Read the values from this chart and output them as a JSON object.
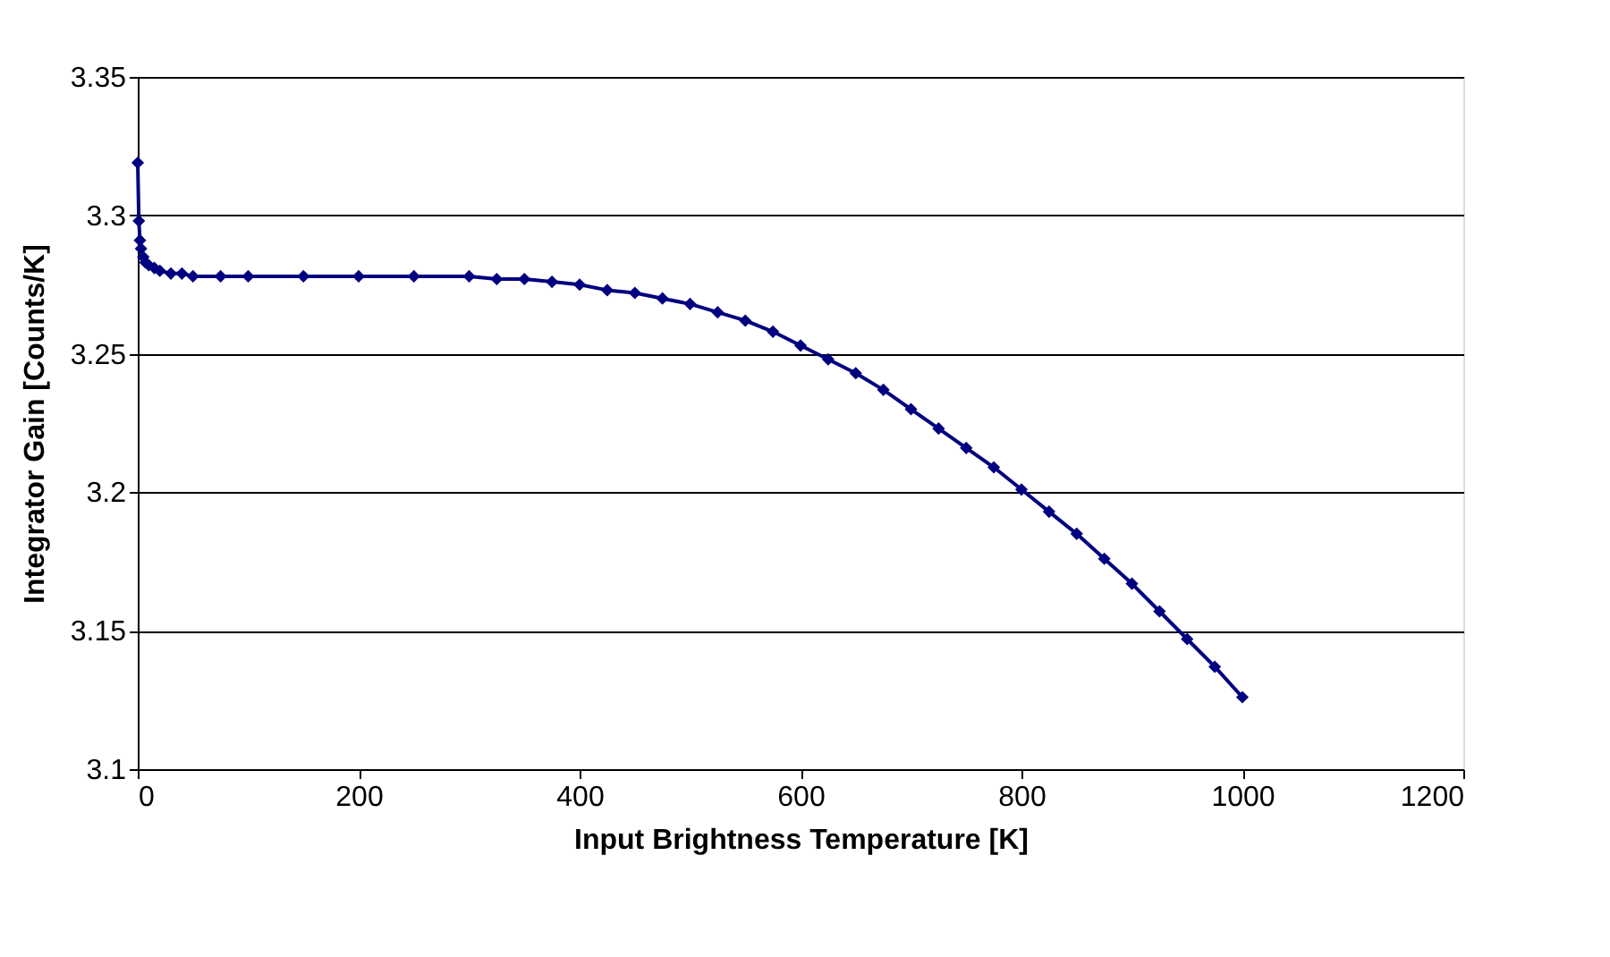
{
  "chart_data": {
    "type": "line",
    "xlabel": "Input Brightness Temperature [K]",
    "ylabel": "Integrator Gain [Counts/K]",
    "x": [
      0,
      1,
      2,
      3,
      5,
      7,
      10,
      15,
      20,
      30,
      40,
      50,
      75,
      100,
      150,
      200,
      250,
      300,
      325,
      350,
      375,
      400,
      425,
      450,
      475,
      500,
      525,
      550,
      575,
      600,
      625,
      650,
      675,
      700,
      725,
      750,
      775,
      800,
      825,
      850,
      875,
      900,
      925,
      950,
      975,
      1000
    ],
    "series": [
      {
        "color": "#000080",
        "values": [
          3.319,
          3.298,
          3.291,
          3.288,
          3.285,
          3.283,
          3.282,
          3.281,
          3.28,
          3.279,
          3.279,
          3.278,
          3.278,
          3.278,
          3.278,
          3.278,
          3.278,
          3.278,
          3.277,
          3.277,
          3.276,
          3.275,
          3.273,
          3.272,
          3.27,
          3.268,
          3.265,
          3.262,
          3.258,
          3.253,
          3.248,
          3.243,
          3.237,
          3.23,
          3.223,
          3.216,
          3.209,
          3.201,
          3.193,
          3.185,
          3.176,
          3.167,
          3.157,
          3.147,
          3.137,
          3.126
        ]
      }
    ],
    "xlim": [
      0,
      1200
    ],
    "xticks": [
      0,
      200,
      400,
      600,
      800,
      1000,
      1200
    ],
    "ylim": [
      3.1,
      3.35
    ],
    "yticks": [
      3.1,
      3.15,
      3.2,
      3.25,
      3.3,
      3.35
    ],
    "grid": "y",
    "marker": "diamond",
    "line_style": "solid"
  }
}
